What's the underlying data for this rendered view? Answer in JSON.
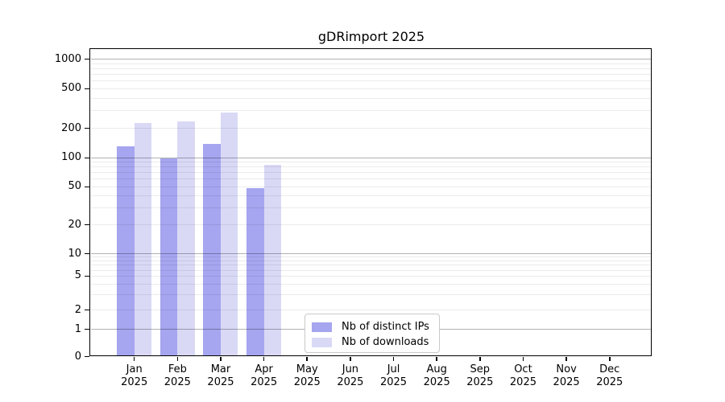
{
  "chart_data": {
    "type": "bar",
    "title": "gDRimport 2025",
    "year_label": "2025",
    "months": [
      "Jan",
      "Feb",
      "Mar",
      "Apr",
      "May",
      "Jun",
      "Jul",
      "Aug",
      "Sep",
      "Oct",
      "Nov",
      "Dec"
    ],
    "series": [
      {
        "name": "Nb of distinct IPs",
        "color": "#a5a5f0",
        "values": [
          130,
          98,
          138,
          48,
          0,
          0,
          0,
          0,
          0,
          0,
          0,
          0
        ]
      },
      {
        "name": "Nb of downloads",
        "color": "#d9d9f6",
        "values": [
          225,
          235,
          290,
          85,
          0,
          0,
          0,
          0,
          0,
          0,
          0,
          0
        ]
      }
    ],
    "y_ticks": [
      0,
      1,
      2,
      5,
      10,
      20,
      50,
      100,
      200,
      500,
      1000
    ],
    "y_axis_scale": "symlog",
    "ylim": [
      0,
      1300
    ],
    "grid": true,
    "legend_position": "lower center"
  }
}
